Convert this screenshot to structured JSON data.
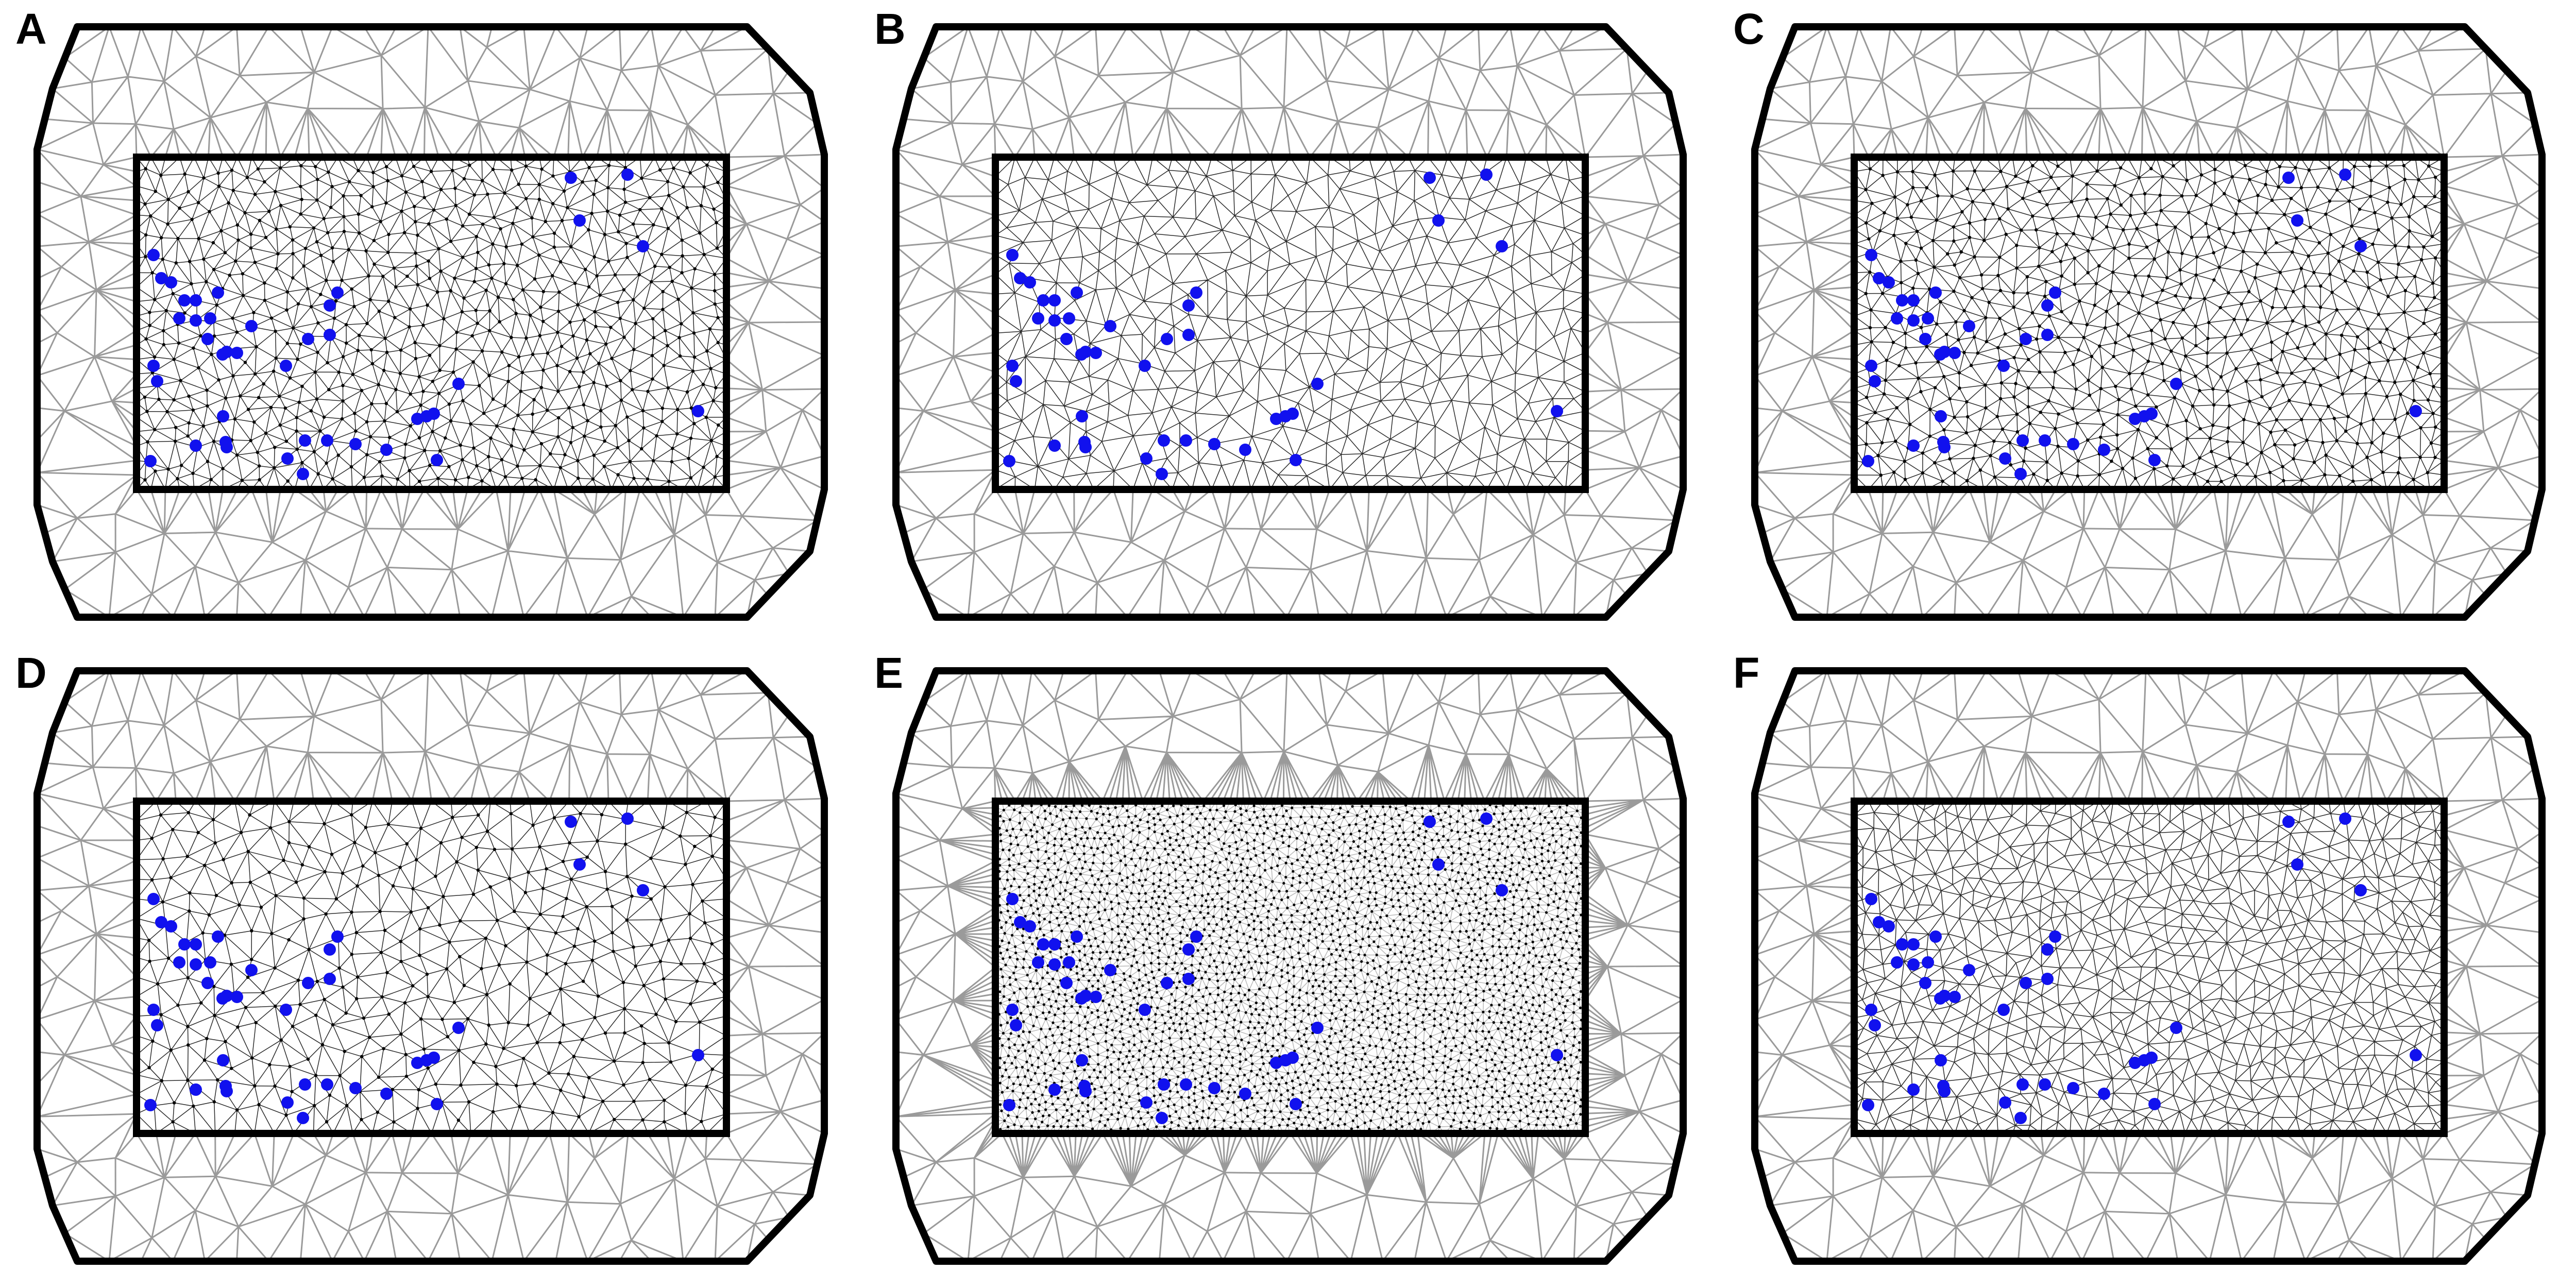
{
  "figure": {
    "panels": [
      {
        "label": "A",
        "inner_density": "medium",
        "inner_nodes": "shown"
      },
      {
        "label": "B",
        "inner_density": "coarse",
        "inner_nodes": "hidden"
      },
      {
        "label": "C",
        "inner_density": "medium",
        "inner_nodes": "shown"
      },
      {
        "label": "D",
        "inner_density": "coarse",
        "inner_nodes": "shown"
      },
      {
        "label": "E",
        "inner_density": "fine",
        "inner_nodes": "shown"
      },
      {
        "label": "F",
        "inner_density": "medium",
        "inner_nodes": "hidden"
      }
    ],
    "colors": {
      "outer_mesh": "#9a9a9a",
      "inner_mesh": "#2a2a2a",
      "fine_inner_mesh": "#bdbdbd",
      "inner_nodes": "#000000",
      "boundary": "#000000",
      "sensor": "#1111ee",
      "background": "#ffffff"
    },
    "icons": {
      "sensor": "blue-dot",
      "mesh": "triangular-mesh"
    }
  }
}
